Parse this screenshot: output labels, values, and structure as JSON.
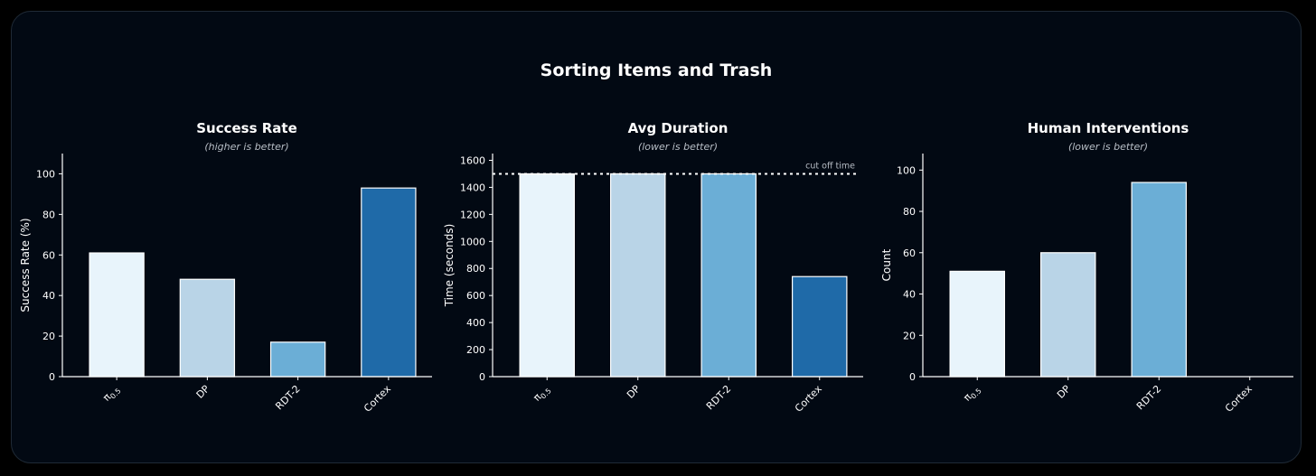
{
  "figure": {
    "title": "Sorting Items and Trash"
  },
  "colors": {
    "background": "#020913",
    "axis": "#ffffff",
    "bar_stroke": "#ffffff",
    "bar_fills": [
      "#e8f4fb",
      "#b9d4e7",
      "#6baed6",
      "#1f6aa8"
    ]
  },
  "chart_data": [
    {
      "type": "bar",
      "title": "Success Rate",
      "subtitle": "(higher is better)",
      "xlabel": "",
      "ylabel": "Success Rate (%)",
      "categories": [
        "π0.5",
        "DP",
        "RDT-2",
        "Cortex"
      ],
      "values": [
        61,
        48,
        17,
        93
      ],
      "ylim": [
        0,
        110
      ],
      "yticks": [
        0,
        20,
        40,
        60,
        80,
        100
      ],
      "grid": false,
      "legend": "none"
    },
    {
      "type": "bar",
      "title": "Avg Duration",
      "subtitle": "(lower is better)",
      "xlabel": "",
      "ylabel": "Time (seconds)",
      "categories": [
        "π0.5",
        "DP",
        "RDT-2",
        "Cortex"
      ],
      "values": [
        1500,
        1500,
        1500,
        740
      ],
      "ylim": [
        0,
        1650
      ],
      "yticks": [
        0,
        200,
        400,
        600,
        800,
        1000,
        1200,
        1400,
        1600
      ],
      "reference_line": {
        "value": 1500,
        "label": "cut off time",
        "style": "dotted"
      },
      "grid": false,
      "legend": "none"
    },
    {
      "type": "bar",
      "title": "Human Interventions",
      "subtitle": "(lower is better)",
      "xlabel": "",
      "ylabel": "Count",
      "categories": [
        "π0.5",
        "DP",
        "RDT-2",
        "Cortex"
      ],
      "values": [
        51,
        60,
        94,
        0
      ],
      "ylim": [
        0,
        108
      ],
      "yticks": [
        0,
        20,
        40,
        60,
        80,
        100
      ],
      "grid": false,
      "legend": "none"
    }
  ]
}
